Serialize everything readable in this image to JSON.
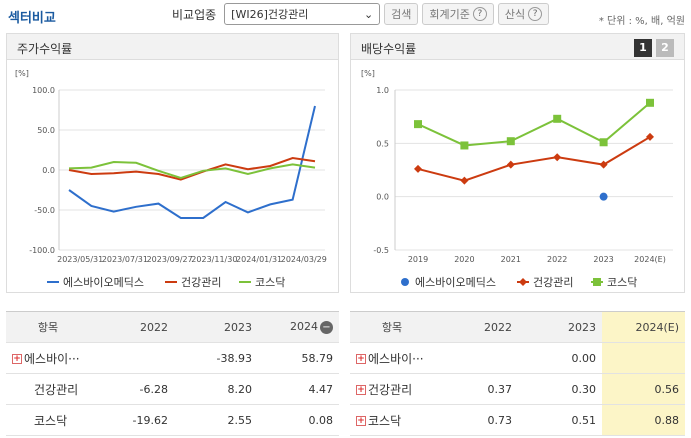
{
  "title": "섹터비교",
  "toolbar": {
    "compare_label": "비교업종",
    "select_value": "[WI26]건강관리",
    "search_btn": "검색",
    "acct_btn": "회계기준",
    "calc_btn": "산식",
    "help": "?",
    "unit_note": "* 단위 : %, 배, 억원"
  },
  "left_panel": {
    "title": "주가수익률"
  },
  "right_panel": {
    "title": "배당수익률",
    "btn1": "1",
    "btn2": "2"
  },
  "colors": {
    "series1": "#2e6fcc",
    "series2": "#cc3b10",
    "series3": "#7cc23a"
  },
  "chart_data": [
    {
      "type": "line",
      "ylabel": "[%]",
      "ylim": [
        -100,
        100
      ],
      "yticks": [
        "100.0",
        "50.0",
        "0.0",
        "-50.0",
        "-100.0"
      ],
      "xtick_labels": [
        "2023/05/31",
        "2023/07/31",
        "2023/09/27",
        "2023/11/30",
        "2024/01/31",
        "2024/03/29"
      ],
      "series": [
        {
          "name": "에스바이오메딕스",
          "values": [
            -25,
            -45,
            -52,
            -46,
            -42,
            -60,
            -60,
            -40,
            -53,
            -43,
            -37,
            80
          ]
        },
        {
          "name": "건강관리",
          "values": [
            0,
            -5,
            -4,
            -2,
            -5,
            -12,
            -2,
            7,
            1,
            5,
            15,
            11
          ]
        },
        {
          "name": "코스닥",
          "values": [
            2,
            3,
            10,
            9,
            -1,
            -10,
            -1,
            2,
            -5,
            2,
            7,
            3
          ]
        }
      ]
    },
    {
      "type": "line",
      "ylabel": "[%]",
      "ylim": [
        -0.5,
        1.0
      ],
      "yticks": [
        "1.0",
        "0.5",
        "0.0",
        "-0.5"
      ],
      "categories": [
        "2019",
        "2020",
        "2021",
        "2022",
        "2023",
        "2024(E)"
      ],
      "series": [
        {
          "name": "에스바이오메딕스",
          "values": [
            null,
            null,
            null,
            null,
            0.0,
            null
          ]
        },
        {
          "name": "건강관리",
          "values": [
            0.26,
            0.15,
            0.3,
            0.37,
            0.3,
            0.56
          ]
        },
        {
          "name": "코스닥",
          "values": [
            0.68,
            0.48,
            0.52,
            0.73,
            0.51,
            0.88
          ]
        }
      ]
    }
  ],
  "left_table": {
    "headers": [
      "항목",
      "2022",
      "2023",
      "2024"
    ],
    "rows": [
      {
        "name": "에스바이···",
        "expand": "+",
        "v2022": "",
        "v2023": "-38.93",
        "v2024": "58.79"
      },
      {
        "name": "건강관리",
        "expand": "",
        "v2022": "-6.28",
        "v2023": "8.20",
        "v2024": "4.47"
      },
      {
        "name": "코스닥",
        "expand": "",
        "v2022": "-19.62",
        "v2023": "2.55",
        "v2024": "0.08"
      }
    ]
  },
  "right_table": {
    "headers": [
      "항목",
      "2022",
      "2023",
      "2024(E)"
    ],
    "rows": [
      {
        "name": "에스바이···",
        "expand": "+",
        "v2022": "",
        "v2023": "0.00",
        "v2024": ""
      },
      {
        "name": "건강관리",
        "expand": "+",
        "v2022": "0.37",
        "v2023": "0.30",
        "v2024": "0.56"
      },
      {
        "name": "코스닥",
        "expand": "+",
        "v2022": "0.73",
        "v2023": "0.51",
        "v2024": "0.88"
      }
    ]
  }
}
